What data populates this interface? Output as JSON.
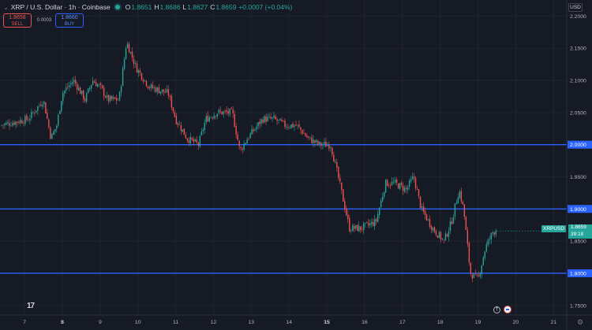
{
  "header": {
    "symbol_title": "XRP / U.S. Dollar · 1h · Coinbase",
    "ohlc": [
      {
        "key": "O",
        "value": "1.8651"
      },
      {
        "key": "H",
        "value": "1.8686"
      },
      {
        "key": "L",
        "value": "1.8627"
      },
      {
        "key": "C",
        "value": "1.8659"
      }
    ],
    "change": "+0.0007 (+0.04%)"
  },
  "trade": {
    "sell_price": "1.8658",
    "sell_label": "SELL",
    "spread": "0.0003",
    "buy_price": "1.8660",
    "buy_label": "BUY"
  },
  "currency_button": "USD",
  "price_axis": {
    "ticks": [
      "2.2000",
      "2.1500",
      "2.1000",
      "2.0500",
      "2.0000",
      "1.9500",
      "1.9000",
      "1.8500",
      "1.8000",
      "1.7500"
    ]
  },
  "time_axis": {
    "ticks": [
      "7",
      "8",
      "9",
      "10",
      "11",
      "12",
      "13",
      "14",
      "15",
      "16",
      "17",
      "18",
      "19",
      "20",
      "21"
    ],
    "bold": [
      "8",
      "15"
    ]
  },
  "current_price": {
    "symbol": "XRPUSD",
    "price": "1.8659",
    "countdown": "39:18"
  },
  "horizontal_levels": [
    2.0,
    1.9,
    1.8
  ],
  "colors": {
    "background": "#161a25",
    "up": "#26a69a",
    "down": "#ef5350",
    "level_line": "#2962ff",
    "grid": "#22262f"
  },
  "chart_data": {
    "type": "candlestick",
    "ylim": [
      1.735,
      2.225
    ],
    "xlim_days": [
      6.35,
      21.35
    ],
    "last_close": 1.8659,
    "path": [
      [
        6.35,
        2.03
      ],
      [
        7.1,
        2.04
      ],
      [
        7.5,
        2.07
      ],
      [
        7.7,
        2.01
      ],
      [
        7.85,
        2.03
      ],
      [
        8.0,
        2.08
      ],
      [
        8.3,
        2.1
      ],
      [
        8.6,
        2.07
      ],
      [
        8.8,
        2.1
      ],
      [
        9.0,
        2.09
      ],
      [
        9.2,
        2.07
      ],
      [
        9.5,
        2.07
      ],
      [
        9.7,
        2.16
      ],
      [
        9.95,
        2.12
      ],
      [
        10.3,
        2.09
      ],
      [
        10.8,
        2.08
      ],
      [
        11.0,
        2.04
      ],
      [
        11.3,
        2.01
      ],
      [
        11.6,
        2.0
      ],
      [
        11.8,
        2.04
      ],
      [
        12.1,
        2.05
      ],
      [
        12.5,
        2.05
      ],
      [
        12.7,
        1.99
      ],
      [
        12.9,
        2.01
      ],
      [
        13.3,
        2.04
      ],
      [
        13.6,
        2.04
      ],
      [
        13.9,
        2.03
      ],
      [
        14.2,
        2.03
      ],
      [
        14.5,
        2.01
      ],
      [
        14.8,
        2.0
      ],
      [
        15.1,
        2.0
      ],
      [
        15.3,
        1.95
      ],
      [
        15.6,
        1.87
      ],
      [
        15.9,
        1.87
      ],
      [
        16.3,
        1.88
      ],
      [
        16.55,
        1.94
      ],
      [
        16.8,
        1.94
      ],
      [
        17.1,
        1.93
      ],
      [
        17.3,
        1.95
      ],
      [
        17.5,
        1.9
      ],
      [
        17.8,
        1.87
      ],
      [
        18.1,
        1.85
      ],
      [
        18.3,
        1.88
      ],
      [
        18.5,
        1.93
      ],
      [
        18.62,
        1.9
      ],
      [
        18.8,
        1.8
      ],
      [
        19.0,
        1.79
      ],
      [
        19.2,
        1.84
      ],
      [
        19.4,
        1.865
      ],
      [
        19.5,
        1.8659
      ]
    ]
  }
}
